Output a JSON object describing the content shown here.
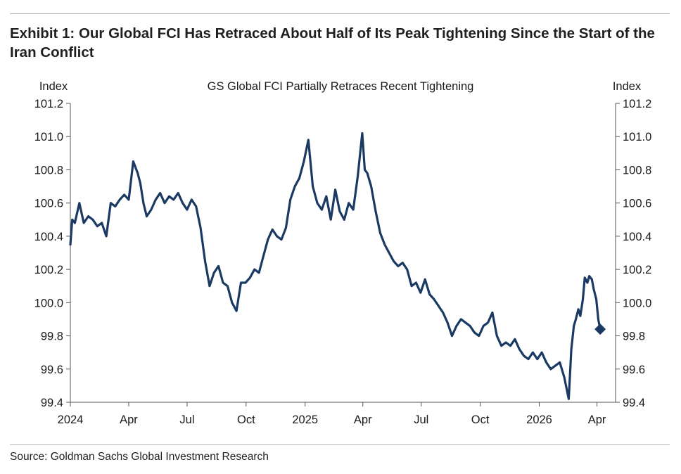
{
  "exhibit": {
    "title": "Exhibit 1: Our Global FCI Has Retraced About Half of Its Peak Tightening Since the Start of the Iran Conflict",
    "source": "Source: Goldman Sachs Global Investment Research"
  },
  "chart_data": {
    "type": "line",
    "title": "GS Global FCI Partially Retraces Recent Tightening",
    "ylabel_left": "Index",
    "ylabel_right": "Index",
    "ylim": [
      99.4,
      101.2
    ],
    "yticks": [
      "101.2",
      "101.0",
      "100.8",
      "100.6",
      "100.4",
      "100.2",
      "100.0",
      "99.8",
      "99.6",
      "99.4"
    ],
    "xlim": [
      "2024-01-01",
      "2026-04-30"
    ],
    "xticks": [
      {
        "label": "2024",
        "date": "2024-01-01"
      },
      {
        "label": "Apr",
        "date": "2024-04-01"
      },
      {
        "label": "Jul",
        "date": "2024-07-01"
      },
      {
        "label": "Oct",
        "date": "2024-10-01"
      },
      {
        "label": "2025",
        "date": "2025-01-01"
      },
      {
        "label": "Apr",
        "date": "2025-04-01"
      },
      {
        "label": "Jul",
        "date": "2025-07-01"
      },
      {
        "label": "Oct",
        "date": "2025-10-01"
      },
      {
        "label": "2026",
        "date": "2026-01-01"
      },
      {
        "label": "Apr",
        "date": "2026-04-01"
      }
    ],
    "grid": false,
    "legend": "none",
    "line_color": "#1b3a63",
    "series": [
      {
        "x": [
          "2024-01-01",
          "2024-01-04",
          "2024-01-08",
          "2024-01-15",
          "2024-01-22",
          "2024-01-29",
          "2024-02-05",
          "2024-02-12",
          "2024-02-19",
          "2024-02-26",
          "2024-03-04",
          "2024-03-11",
          "2024-03-18",
          "2024-03-25",
          "2024-04-01",
          "2024-04-08",
          "2024-04-15",
          "2024-04-19",
          "2024-04-24",
          "2024-04-29",
          "2024-05-06",
          "2024-05-13",
          "2024-05-20",
          "2024-05-27",
          "2024-06-03",
          "2024-06-10",
          "2024-06-17",
          "2024-06-24",
          "2024-07-01",
          "2024-07-08",
          "2024-07-15",
          "2024-07-22",
          "2024-07-29",
          "2024-08-05",
          "2024-08-12",
          "2024-08-19",
          "2024-08-26",
          "2024-09-02",
          "2024-09-09",
          "2024-09-16",
          "2024-09-23",
          "2024-09-30",
          "2024-10-07",
          "2024-10-14",
          "2024-10-21",
          "2024-10-28",
          "2024-11-04",
          "2024-11-11",
          "2024-11-18",
          "2024-11-25",
          "2024-12-02",
          "2024-12-09",
          "2024-12-16",
          "2024-12-23",
          "2024-12-30",
          "2025-01-06",
          "2025-01-10",
          "2025-01-13",
          "2025-01-20",
          "2025-01-27",
          "2025-02-03",
          "2025-02-10",
          "2025-02-17",
          "2025-02-24",
          "2025-03-03",
          "2025-03-10",
          "2025-03-17",
          "2025-03-24",
          "2025-03-31",
          "2025-04-04",
          "2025-04-08",
          "2025-04-14",
          "2025-04-21",
          "2025-04-28",
          "2025-05-05",
          "2025-05-12",
          "2025-05-19",
          "2025-05-26",
          "2025-06-02",
          "2025-06-09",
          "2025-06-16",
          "2025-06-23",
          "2025-06-30",
          "2025-07-07",
          "2025-07-14",
          "2025-07-21",
          "2025-07-28",
          "2025-08-04",
          "2025-08-11",
          "2025-08-18",
          "2025-08-25",
          "2025-09-01",
          "2025-09-08",
          "2025-09-15",
          "2025-09-22",
          "2025-09-29",
          "2025-10-06",
          "2025-10-13",
          "2025-10-20",
          "2025-10-27",
          "2025-11-03",
          "2025-11-10",
          "2025-11-17",
          "2025-11-24",
          "2025-12-01",
          "2025-12-08",
          "2025-12-15",
          "2025-12-22",
          "2025-12-29",
          "2026-01-05",
          "2026-01-12",
          "2026-01-19",
          "2026-01-26",
          "2026-02-02",
          "2026-02-09",
          "2026-02-16",
          "2026-02-20",
          "2026-02-24",
          "2026-02-27",
          "2026-03-03",
          "2026-03-06",
          "2026-03-10",
          "2026-03-13",
          "2026-03-17",
          "2026-03-20",
          "2026-03-24",
          "2026-03-27",
          "2026-03-31",
          "2026-04-03",
          "2026-04-06"
        ],
        "values": [
          100.35,
          100.5,
          100.48,
          100.6,
          100.48,
          100.52,
          100.5,
          100.46,
          100.48,
          100.4,
          100.6,
          100.58,
          100.62,
          100.65,
          100.62,
          100.85,
          100.78,
          100.72,
          100.6,
          100.52,
          100.56,
          100.62,
          100.66,
          100.6,
          100.64,
          100.62,
          100.66,
          100.6,
          100.56,
          100.62,
          100.58,
          100.45,
          100.25,
          100.1,
          100.18,
          100.22,
          100.12,
          100.1,
          100.0,
          99.95,
          100.12,
          100.12,
          100.15,
          100.2,
          100.18,
          100.28,
          100.38,
          100.44,
          100.4,
          100.38,
          100.45,
          100.62,
          100.7,
          100.75,
          100.85,
          100.98,
          100.82,
          100.7,
          100.6,
          100.56,
          100.64,
          100.5,
          100.68,
          100.55,
          100.5,
          100.6,
          100.56,
          100.76,
          101.02,
          100.8,
          100.78,
          100.7,
          100.55,
          100.42,
          100.35,
          100.3,
          100.25,
          100.22,
          100.24,
          100.2,
          100.1,
          100.12,
          100.06,
          100.14,
          100.05,
          100.02,
          99.98,
          99.94,
          99.88,
          99.8,
          99.86,
          99.9,
          99.88,
          99.86,
          99.82,
          99.8,
          99.86,
          99.88,
          99.94,
          99.8,
          99.74,
          99.76,
          99.74,
          99.78,
          99.72,
          99.68,
          99.66,
          99.7,
          99.66,
          99.7,
          99.64,
          99.6,
          99.62,
          99.64,
          99.55,
          99.42,
          99.72,
          99.86,
          99.9,
          99.96,
          99.92,
          100.02,
          100.15,
          100.12,
          100.16,
          100.14,
          100.08,
          100.02,
          99.9,
          99.84
        ]
      }
    ],
    "end_marker": {
      "x": "2026-04-06",
      "y": 99.84,
      "shape": "diamond"
    }
  }
}
